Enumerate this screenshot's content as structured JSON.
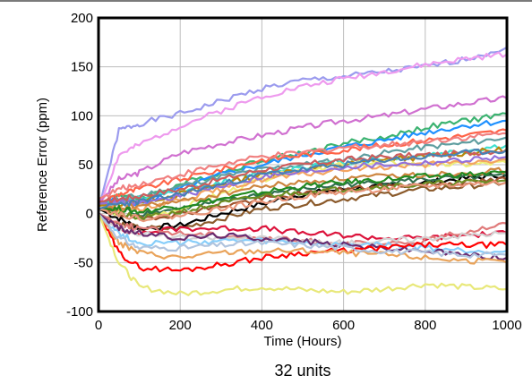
{
  "chart_data": {
    "type": "line",
    "title": "",
    "caption": "32 units",
    "xlabel": "Time (Hours)",
    "ylabel": "Reference Error (ppm)",
    "xlim": [
      0,
      1000
    ],
    "ylim": [
      -100,
      200
    ],
    "xticks": [
      0,
      200,
      400,
      600,
      800,
      1000
    ],
    "yticks": [
      -100,
      -50,
      0,
      50,
      100,
      150,
      200
    ],
    "grid": true,
    "legend": "none",
    "x": [
      0,
      50,
      100,
      200,
      300,
      400,
      500,
      600,
      700,
      800,
      900,
      1000
    ],
    "series": [
      {
        "color": "#9b9bee",
        "values": [
          5,
          85,
          92,
          102,
          115,
          128,
          136,
          140,
          145,
          150,
          158,
          170
        ]
      },
      {
        "color": "#ee9bee",
        "values": [
          5,
          60,
          70,
          90,
          105,
          120,
          130,
          138,
          145,
          152,
          158,
          163
        ]
      },
      {
        "color": "#d070d0",
        "values": [
          10,
          35,
          42,
          62,
          72,
          80,
          88,
          95,
          100,
          107,
          113,
          118
        ]
      },
      {
        "color": "#3cb371",
        "values": [
          10,
          20,
          15,
          30,
          42,
          55,
          62,
          72,
          78,
          88,
          95,
          102
        ]
      },
      {
        "color": "#1e90ff",
        "values": [
          10,
          15,
          10,
          25,
          40,
          50,
          60,
          68,
          75,
          83,
          90,
          95
        ]
      },
      {
        "color": "#8b5a2b",
        "values": [
          0,
          -10,
          -15,
          -15,
          -5,
          5,
          10,
          15,
          20,
          25,
          28,
          32
        ]
      },
      {
        "color": "#000000",
        "values": [
          5,
          -5,
          -15,
          -12,
          0,
          10,
          20,
          25,
          28,
          32,
          36,
          40
        ]
      },
      {
        "color": "#2f6f4f",
        "values": [
          5,
          5,
          0,
          5,
          12,
          20,
          25,
          30,
          32,
          35,
          37,
          38
        ]
      },
      {
        "color": "#ff6347",
        "values": [
          10,
          20,
          25,
          35,
          45,
          55,
          60,
          65,
          70,
          75,
          80,
          85
        ]
      },
      {
        "color": "#f08080",
        "values": [
          15,
          25,
          30,
          40,
          50,
          58,
          62,
          68,
          70,
          74,
          78,
          82
        ]
      },
      {
        "color": "#5f9ea0",
        "values": [
          10,
          15,
          18,
          28,
          38,
          45,
          50,
          55,
          62,
          68,
          72,
          78
        ]
      },
      {
        "color": "#40e0d0",
        "values": [
          8,
          12,
          15,
          22,
          32,
          42,
          48,
          52,
          56,
          60,
          64,
          70
        ]
      },
      {
        "color": "#b8860b",
        "values": [
          8,
          10,
          12,
          20,
          30,
          40,
          45,
          50,
          55,
          58,
          62,
          66
        ]
      },
      {
        "color": "#eeee77",
        "values": [
          5,
          0,
          -5,
          5,
          20,
          35,
          45,
          50,
          52,
          50,
          50,
          52
        ]
      },
      {
        "color": "#f4a460",
        "values": [
          5,
          5,
          5,
          15,
          25,
          35,
          40,
          45,
          48,
          50,
          52,
          55
        ]
      },
      {
        "color": "#9370db",
        "values": [
          10,
          12,
          10,
          18,
          28,
          38,
          42,
          48,
          50,
          52,
          55,
          58
        ]
      },
      {
        "color": "#cd5c5c",
        "values": [
          12,
          15,
          18,
          25,
          35,
          45,
          50,
          55,
          58,
          60,
          62,
          65
        ]
      },
      {
        "color": "#cd853f",
        "values": [
          5,
          5,
          8,
          12,
          20,
          28,
          32,
          36,
          38,
          40,
          42,
          44
        ]
      },
      {
        "color": "#a0522d",
        "values": [
          5,
          0,
          -5,
          0,
          8,
          15,
          20,
          25,
          28,
          30,
          32,
          35
        ]
      },
      {
        "color": "#228b22",
        "values": [
          5,
          5,
          2,
          8,
          15,
          22,
          28,
          32,
          35,
          38,
          40,
          42
        ]
      },
      {
        "color": "#6b8e23",
        "values": [
          5,
          0,
          -5,
          2,
          10,
          18,
          22,
          25,
          28,
          30,
          32,
          34
        ]
      },
      {
        "color": "#e9967a",
        "values": [
          5,
          0,
          -5,
          -2,
          5,
          12,
          18,
          22,
          25,
          28,
          30,
          32
        ]
      },
      {
        "color": "#4682b4",
        "values": [
          5,
          10,
          12,
          20,
          30,
          40,
          45,
          50,
          55,
          58,
          62,
          65
        ]
      },
      {
        "color": "#dc143c",
        "values": [
          0,
          -15,
          -20,
          -15,
          -15,
          -15,
          -20,
          -22,
          -25,
          -25,
          -22,
          -20
        ]
      },
      {
        "color": "#e07b7b",
        "values": [
          0,
          -10,
          -15,
          -20,
          -22,
          -25,
          -28,
          -30,
          -32,
          -28,
          -18,
          -10
        ]
      },
      {
        "color": "#d3d3d3",
        "values": [
          0,
          -15,
          -20,
          -25,
          -25,
          -25,
          -28,
          -30,
          -28,
          -25,
          -22,
          -20
        ]
      },
      {
        "color": "#87cefa",
        "values": [
          0,
          -20,
          -30,
          -30,
          -28,
          -28,
          -30,
          -32,
          -32,
          -35,
          -38,
          -38
        ]
      },
      {
        "color": "#6a2c70",
        "values": [
          0,
          -15,
          -20,
          -25,
          -22,
          -25,
          -28,
          -32,
          -35,
          -38,
          -42,
          -45
        ]
      },
      {
        "color": "#ff0000",
        "values": [
          0,
          -40,
          -55,
          -58,
          -52,
          -45,
          -40,
          -38,
          -35,
          -32,
          -32,
          -32
        ]
      },
      {
        "color": "#e9a35a",
        "values": [
          0,
          -30,
          -40,
          -45,
          -40,
          -38,
          -38,
          -40,
          -42,
          -45,
          -48,
          -50
        ]
      },
      {
        "color": "#b0c4de",
        "values": [
          0,
          -25,
          -35,
          -35,
          -32,
          -30,
          -32,
          -35,
          -38,
          -40,
          -42,
          -42
        ]
      },
      {
        "color": "#e8e87a",
        "values": [
          0,
          -50,
          -75,
          -82,
          -78,
          -75,
          -78,
          -80,
          -77,
          -72,
          -75,
          -77
        ]
      }
    ]
  }
}
